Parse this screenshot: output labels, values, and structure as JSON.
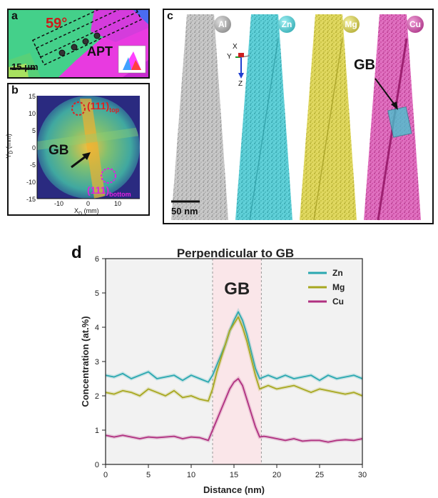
{
  "panel_a": {
    "label": "a",
    "angle": "59°",
    "apt_label": "APT",
    "scale_bar": "15 μm"
  },
  "panel_b": {
    "label": "b",
    "gb_label": "GB",
    "top_plane": "(111)",
    "top_sub": "top",
    "bottom_plane": "(111)",
    "bottom_sub": "bottom",
    "xlabel": "X",
    "xlabel_sub": "D",
    "xlabel_unit": " (mm)",
    "ylabel": "Y",
    "ylabel_sub": "D",
    "ylabel_unit": " (mm)",
    "xticks": [
      "-10",
      "0",
      "10"
    ],
    "yticks": [
      "15",
      "10",
      "5",
      "0",
      "-5",
      "-10",
      "-15"
    ]
  },
  "panel_c": {
    "label": "c",
    "elements": [
      {
        "symbol": "Al",
        "color": "#9a9a9a"
      },
      {
        "symbol": "Zn",
        "color": "#30b8c0"
      },
      {
        "symbol": "Mg",
        "color": "#c8c030"
      },
      {
        "symbol": "Cu",
        "color": "#c03890"
      }
    ],
    "gb_label": "GB",
    "scale_bar": "50 nm",
    "axes": {
      "x": "X",
      "y": "Y",
      "z": "Z"
    }
  },
  "panel_d": {
    "label": "d",
    "gb_label": "GB"
  },
  "chart_data": {
    "type": "line",
    "title": "Perpendicular to GB",
    "xlabel": "Distance (nm)",
    "ylabel": "Concentration (at.%)",
    "xlim": [
      0,
      30
    ],
    "ylim": [
      0,
      6
    ],
    "xticks": [
      0,
      5,
      10,
      15,
      20,
      25,
      30
    ],
    "yticks": [
      0,
      1,
      2,
      3,
      4,
      5,
      6
    ],
    "legend_position": "top-right",
    "gb_region": [
      12.5,
      18.2
    ],
    "x": [
      0,
      1,
      2,
      3,
      4,
      5,
      6,
      7,
      8,
      9,
      10,
      11,
      12,
      12.5,
      13,
      13.5,
      14,
      14.5,
      15,
      15.5,
      16,
      16.5,
      17,
      17.5,
      18,
      18.5,
      19,
      20,
      21,
      22,
      23,
      24,
      25,
      26,
      27,
      28,
      29,
      30
    ],
    "series": [
      {
        "name": "Zn",
        "color": "#2aa8b0",
        "values": [
          2.6,
          2.55,
          2.65,
          2.5,
          2.6,
          2.7,
          2.5,
          2.55,
          2.6,
          2.45,
          2.6,
          2.5,
          2.4,
          2.6,
          2.9,
          3.2,
          3.5,
          3.9,
          4.2,
          4.45,
          4.2,
          3.8,
          3.3,
          2.8,
          2.5,
          2.55,
          2.6,
          2.5,
          2.6,
          2.5,
          2.55,
          2.6,
          2.45,
          2.6,
          2.5,
          2.55,
          2.6,
          2.5
        ]
      },
      {
        "name": "Mg",
        "color": "#a8a820",
        "values": [
          2.1,
          2.05,
          2.15,
          2.1,
          2.0,
          2.2,
          2.1,
          2.0,
          2.15,
          1.95,
          2.0,
          1.9,
          1.85,
          2.2,
          2.7,
          3.1,
          3.5,
          3.9,
          4.1,
          4.3,
          4.0,
          3.6,
          3.1,
          2.6,
          2.2,
          2.25,
          2.3,
          2.2,
          2.25,
          2.3,
          2.2,
          2.1,
          2.2,
          2.15,
          2.1,
          2.05,
          2.1,
          2.0
        ]
      },
      {
        "name": "Cu",
        "color": "#b03080",
        "values": [
          0.85,
          0.8,
          0.85,
          0.8,
          0.75,
          0.8,
          0.78,
          0.8,
          0.82,
          0.75,
          0.8,
          0.78,
          0.7,
          1.0,
          1.3,
          1.6,
          1.9,
          2.2,
          2.4,
          2.5,
          2.3,
          1.9,
          1.5,
          1.1,
          0.8,
          0.82,
          0.8,
          0.75,
          0.7,
          0.75,
          0.68,
          0.7,
          0.7,
          0.65,
          0.7,
          0.72,
          0.7,
          0.75
        ]
      }
    ]
  }
}
